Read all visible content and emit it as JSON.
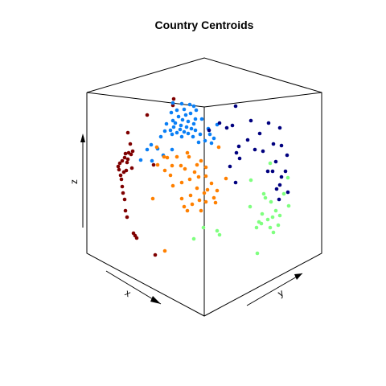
{
  "chart_data": {
    "type": "scatter",
    "title": "Country Centroids",
    "xlabel": "x",
    "ylabel": "y",
    "zlabel": "z",
    "grid": false,
    "colors": {
      "dark_red": "#7f0000",
      "blue": "#0a7ff5",
      "orange": "#ff8000",
      "navy": "#00007f",
      "green": "#7fff7f"
    },
    "series": [
      {
        "color_key": "dark_red",
        "points": [
          [
            183,
            143
          ],
          [
            159,
            165
          ],
          [
            162,
            179
          ],
          [
            165,
            188
          ],
          [
            160,
            190
          ],
          [
            156,
            191
          ],
          [
            163,
            192
          ],
          [
            155,
            196
          ],
          [
            152,
            200
          ],
          [
            159,
            198
          ],
          [
            158,
            202
          ],
          [
            149,
            203
          ],
          [
            147,
            207
          ],
          [
            164,
            209
          ],
          [
            148,
            211
          ],
          [
            154,
            214
          ],
          [
            150,
            218
          ],
          [
            157,
            212
          ],
          [
            151,
            223
          ],
          [
            152,
            232
          ],
          [
            153,
            240
          ],
          [
            155,
            248
          ],
          [
            156,
            262
          ],
          [
            158,
            270
          ],
          [
            166,
            290
          ],
          [
            170,
            296
          ],
          [
            168,
            293
          ],
          [
            193,
            317
          ],
          [
            216,
            123
          ],
          [
            215,
            131
          ],
          [
            191,
            205
          ]
        ]
      },
      {
        "color_key": "blue",
        "points": [
          [
            215,
            128
          ],
          [
            226,
            129
          ],
          [
            236,
            130
          ],
          [
            241,
            132
          ],
          [
            229,
            136
          ],
          [
            220,
            137
          ],
          [
            244,
            137
          ],
          [
            213,
            140
          ],
          [
            237,
            141
          ],
          [
            231,
            143
          ],
          [
            222,
            145
          ],
          [
            243,
            148
          ],
          [
            251,
            148
          ],
          [
            227,
            149
          ],
          [
            215,
            150
          ],
          [
            234,
            151
          ],
          [
            218,
            153
          ],
          [
            241,
            154
          ],
          [
            207,
            154
          ],
          [
            225,
            156
          ],
          [
            232,
            158
          ],
          [
            216,
            158
          ],
          [
            238,
            160
          ],
          [
            224,
            161
          ],
          [
            212,
            162
          ],
          [
            243,
            162
          ],
          [
            205,
            163
          ],
          [
            229,
            164
          ],
          [
            220,
            165
          ],
          [
            234,
            166
          ],
          [
            249,
            167
          ],
          [
            214,
            167
          ],
          [
            226,
            170
          ],
          [
            240,
            170
          ],
          [
            200,
            170
          ],
          [
            259,
            160
          ],
          [
            261,
            167
          ],
          [
            270,
            155
          ],
          [
            266,
            172
          ],
          [
            255,
            175
          ],
          [
            263,
            178
          ],
          [
            247,
            177
          ],
          [
            188,
            180
          ],
          [
            196,
            185
          ],
          [
            183,
            186
          ],
          [
            175,
            199
          ],
          [
            189,
            200
          ],
          [
            214,
            186
          ],
          [
            203,
            193
          ]
        ]
      },
      {
        "color_key": "orange",
        "points": [
          [
            204,
            195
          ],
          [
            208,
            196
          ],
          [
            220,
            195
          ],
          [
            235,
            195
          ],
          [
            250,
            200
          ],
          [
            196,
            205
          ],
          [
            214,
            206
          ],
          [
            225,
            206
          ],
          [
            245,
            205
          ],
          [
            205,
            212
          ],
          [
            230,
            210
          ],
          [
            242,
            214
          ],
          [
            256,
            208
          ],
          [
            212,
            218
          ],
          [
            247,
            220
          ],
          [
            236,
            223
          ],
          [
            226,
            227
          ],
          [
            256,
            219
          ],
          [
            263,
            228
          ],
          [
            215,
            231
          ],
          [
            245,
            234
          ],
          [
            258,
            236
          ],
          [
            270,
            237
          ],
          [
            254,
            240
          ],
          [
            237,
            243
          ],
          [
            226,
            247
          ],
          [
            190,
            247
          ],
          [
            248,
            249
          ],
          [
            239,
            254
          ],
          [
            229,
            257
          ],
          [
            266,
            246
          ],
          [
            256,
            251
          ],
          [
            268,
            252
          ],
          [
            233,
            262
          ],
          [
            250,
            262
          ],
          [
            205,
            312
          ],
          [
            233,
            190
          ],
          [
            281,
            222
          ],
          [
            272,
            183
          ],
          [
            195,
            183
          ]
        ]
      },
      {
        "color_key": "navy",
        "points": [
          [
            293,
            132
          ],
          [
            312,
            150
          ],
          [
            334,
            153
          ],
          [
            273,
            153
          ],
          [
            289,
            156
          ],
          [
            348,
            159
          ],
          [
            282,
            159
          ],
          [
            260,
            162
          ],
          [
            323,
            166
          ],
          [
            308,
            174
          ],
          [
            340,
            179
          ],
          [
            350,
            181
          ],
          [
            297,
            182
          ],
          [
            317,
            186
          ],
          [
            327,
            188
          ],
          [
            294,
            190
          ],
          [
            357,
            193
          ],
          [
            298,
            197
          ],
          [
            343,
            201
          ],
          [
            286,
            207
          ],
          [
            333,
            213
          ],
          [
            355,
            213
          ],
          [
            339,
            213
          ],
          [
            350,
            220
          ],
          [
            348,
            230
          ],
          [
            293,
            227
          ],
          [
            344,
            235
          ],
          [
            347,
            248
          ],
          [
            358,
            239
          ]
        ]
      },
      {
        "color_key": "green",
        "points": [
          [
            336,
            203
          ],
          [
            358,
            221
          ],
          [
            312,
            224
          ],
          [
            328,
            241
          ],
          [
            353,
            241
          ],
          [
            337,
            251
          ],
          [
            311,
            257
          ],
          [
            359,
            256
          ],
          [
            343,
            262
          ],
          [
            326,
            266
          ],
          [
            348,
            268
          ],
          [
            339,
            270
          ],
          [
            333,
            273
          ],
          [
            322,
            276
          ],
          [
            325,
            278
          ],
          [
            346,
            280
          ],
          [
            336,
            283
          ],
          [
            253,
            283
          ],
          [
            319,
            283
          ],
          [
            270,
            287
          ],
          [
            340,
            289
          ],
          [
            273,
            292
          ],
          [
            241,
            297
          ],
          [
            320,
            315
          ],
          [
            330,
            246
          ]
        ]
      }
    ]
  }
}
